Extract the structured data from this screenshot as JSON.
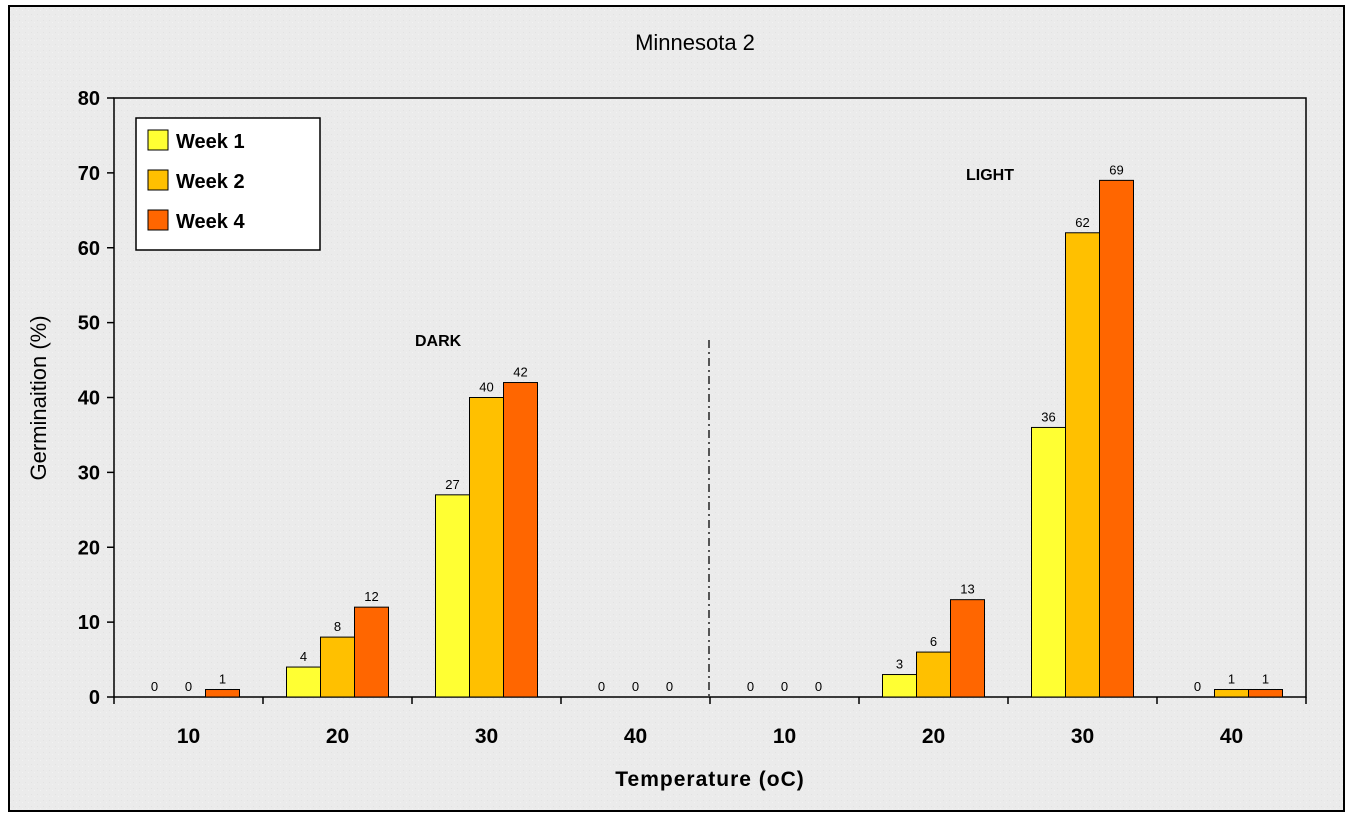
{
  "chart_data": {
    "type": "bar",
    "title": "Minnesota 2",
    "xlabel": "Temperature (oC)",
    "ylabel": "Germinaition (%)",
    "ylim": [
      0,
      80
    ],
    "yticks": [
      "0",
      "10",
      "20",
      "30",
      "40",
      "50",
      "60",
      "70",
      "80"
    ],
    "categories": [
      "10",
      "20",
      "30",
      "40",
      "10",
      "20",
      "30",
      "40"
    ],
    "groups": [
      "DARK",
      "LIGHT"
    ],
    "series": [
      {
        "name": "Week 1",
        "color": "#ffff33",
        "values": [
          0,
          4,
          27,
          0,
          0,
          3,
          36,
          0
        ]
      },
      {
        "name": "Week 2",
        "color": "#ffc000",
        "values": [
          0,
          8,
          40,
          0,
          0,
          6,
          62,
          1
        ]
      },
      {
        "name": "Week 4",
        "color": "#ff6600",
        "values": [
          1,
          12,
          42,
          0,
          0,
          13,
          69,
          1
        ]
      }
    ],
    "legend_position": "top-left",
    "grid": false,
    "divider": "dash-dot line between DARK and LIGHT groups"
  }
}
